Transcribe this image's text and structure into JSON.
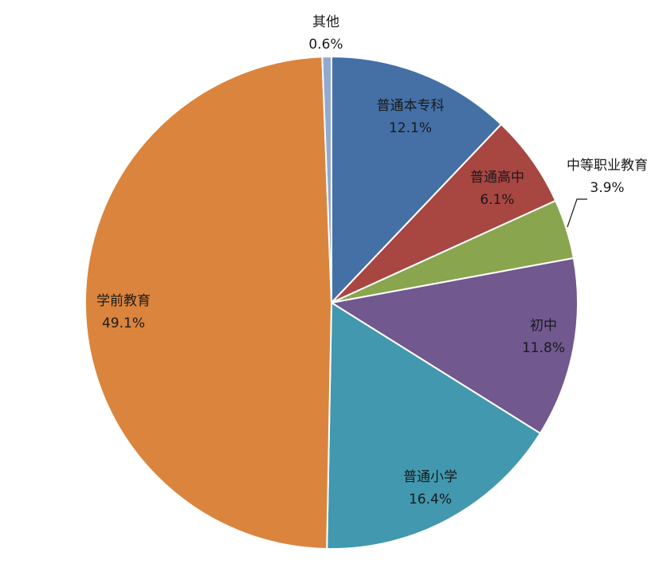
{
  "chart_data": {
    "type": "pie",
    "title": "",
    "start_angle_deg": 0,
    "direction": "clockwise",
    "slices": [
      {
        "label": "普通本专科",
        "value": 12.1,
        "value_label": "12.1%",
        "color": "#4470a6"
      },
      {
        "label": "普通高中",
        "value": 6.1,
        "value_label": "6.1%",
        "color": "#a84642"
      },
      {
        "label": "中等职业教育",
        "value": 3.9,
        "value_label": "3.9%",
        "color": "#89a54e"
      },
      {
        "label": "初中",
        "value": 11.8,
        "value_label": "11.8%",
        "color": "#71588f"
      },
      {
        "label": "普通小学",
        "value": 16.4,
        "value_label": "16.4%",
        "color": "#4198af"
      },
      {
        "label": "学前教育",
        "value": 49.1,
        "value_label": "49.1%",
        "color": "#db843d"
      },
      {
        "label": "其他",
        "value": 0.6,
        "value_label": "0.6%",
        "color": "#93a9cf"
      }
    ]
  }
}
